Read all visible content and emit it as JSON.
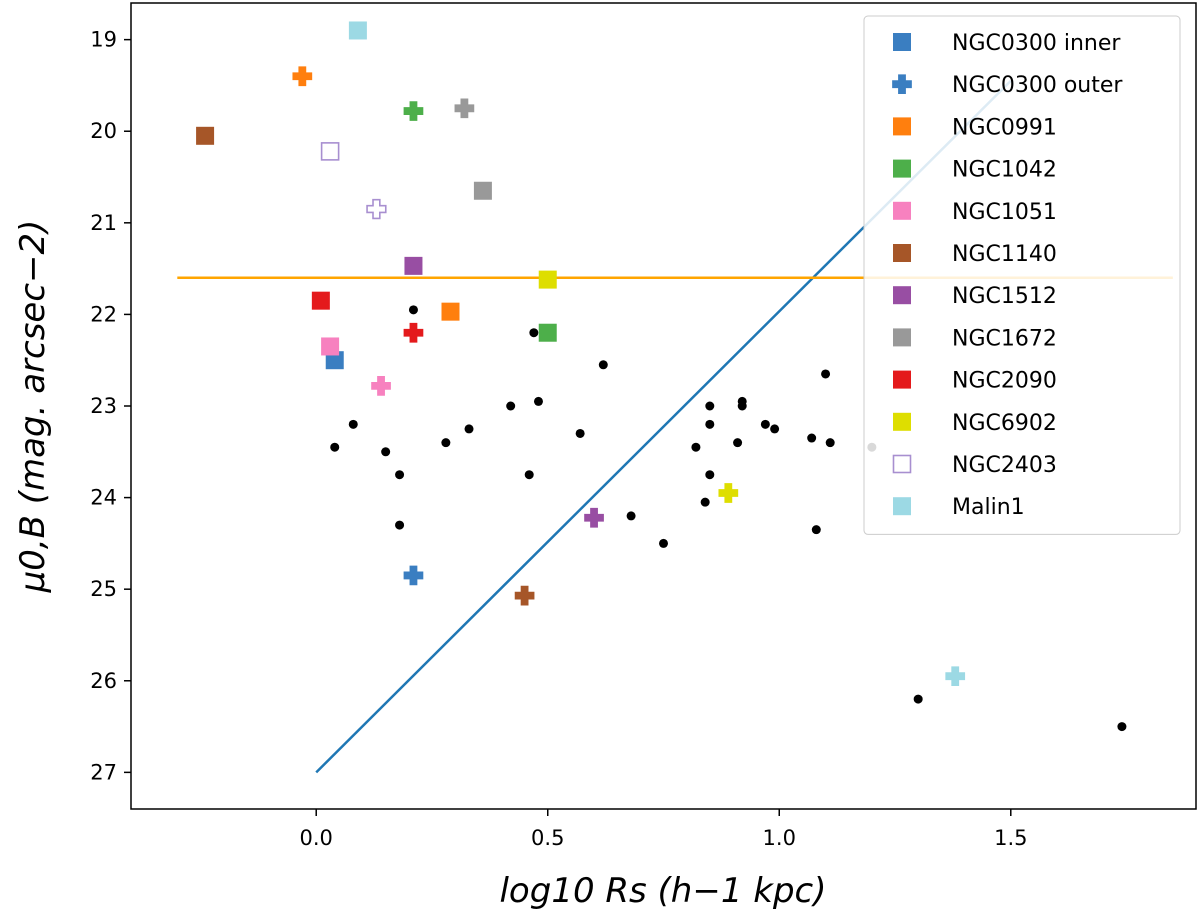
{
  "chart_data": {
    "type": "scatter",
    "xlabel": "log10 Rs (h−1 kpc)",
    "ylabel": "μ0,B (mag. arcsec−2)",
    "xlim": [
      -0.4,
      1.9
    ],
    "ylim": [
      27.4,
      18.6
    ],
    "y_inverted": true,
    "x_ticks": [
      {
        "value": 0.0,
        "label": "0.0"
      },
      {
        "value": 0.5,
        "label": "0.5"
      },
      {
        "value": 1.0,
        "label": "1.0"
      },
      {
        "value": 1.5,
        "label": "1.5"
      }
    ],
    "y_ticks": [
      {
        "value": 19,
        "label": "19"
      },
      {
        "value": 20,
        "label": "20"
      },
      {
        "value": 21,
        "label": "21"
      },
      {
        "value": 22,
        "label": "22"
      },
      {
        "value": 23,
        "label": "23"
      },
      {
        "value": 24,
        "label": "24"
      },
      {
        "value": 25,
        "label": "25"
      },
      {
        "value": 26,
        "label": "26"
      },
      {
        "value": 27,
        "label": "27"
      }
    ],
    "grid": false,
    "legend_position": "top-right",
    "lines": [
      {
        "color": "#1f77b4",
        "x": [
          0.0,
          1.5
        ],
        "y": [
          27.0,
          19.45
        ]
      },
      {
        "color": "#ffa500",
        "x": [
          -0.3,
          1.85
        ],
        "y": [
          21.6,
          21.6
        ]
      }
    ],
    "black_points": {
      "color": "#000000",
      "x": [
        0.04,
        0.08,
        0.15,
        0.18,
        0.18,
        0.21,
        0.28,
        0.33,
        0.42,
        0.46,
        0.47,
        0.48,
        0.57,
        0.62,
        0.68,
        0.75,
        0.82,
        0.84,
        0.85,
        0.85,
        0.85,
        0.91,
        0.92,
        0.92,
        0.97,
        0.99,
        1.07,
        1.08,
        1.1,
        1.11,
        1.2,
        1.3,
        1.74
      ],
      "y": [
        23.45,
        23.2,
        23.5,
        23.75,
        24.3,
        21.95,
        23.4,
        23.25,
        23.0,
        23.75,
        22.2,
        22.95,
        23.3,
        22.55,
        24.2,
        24.5,
        23.45,
        24.05,
        23.2,
        23.75,
        23.0,
        23.4,
        22.95,
        23.0,
        23.2,
        23.25,
        23.35,
        24.35,
        22.65,
        23.4,
        23.45,
        26.2,
        26.5
      ]
    },
    "series": [
      {
        "name": "NGC0300 inner",
        "marker": "square",
        "color": "#3a7ec1",
        "filled": true,
        "x": [
          0.04
        ],
        "y": [
          22.5
        ]
      },
      {
        "name": "NGC0300 outer",
        "marker": "plus",
        "color": "#3a7ec1",
        "filled": true,
        "x": [
          0.21
        ],
        "y": [
          24.85
        ]
      },
      {
        "name": "NGC0991",
        "marker": "square",
        "color": "#ff7f0e",
        "filled": true,
        "x": [
          0.29
        ],
        "y": [
          21.97
        ]
      },
      {
        "name": "NGC0991",
        "marker": "plus",
        "color": "#ff7f0e",
        "filled": true,
        "x": [
          -0.03
        ],
        "y": [
          19.4
        ]
      },
      {
        "name": "NGC1042",
        "marker": "square",
        "color": "#4daf4a",
        "filled": true,
        "x": [
          0.5
        ],
        "y": [
          22.2
        ]
      },
      {
        "name": "NGC1042",
        "marker": "plus",
        "color": "#4daf4a",
        "filled": true,
        "x": [
          0.21
        ],
        "y": [
          19.78
        ]
      },
      {
        "name": "NGC1051",
        "marker": "square",
        "color": "#f781bf",
        "filled": true,
        "x": [
          0.03
        ],
        "y": [
          22.35
        ]
      },
      {
        "name": "NGC1051",
        "marker": "plus",
        "color": "#f781bf",
        "filled": true,
        "x": [
          0.14
        ],
        "y": [
          22.78
        ]
      },
      {
        "name": "NGC1140",
        "marker": "square",
        "color": "#a65628",
        "filled": true,
        "x": [
          -0.24
        ],
        "y": [
          20.05
        ]
      },
      {
        "name": "NGC1140",
        "marker": "plus",
        "color": "#a65628",
        "filled": true,
        "x": [
          0.45
        ],
        "y": [
          25.07
        ]
      },
      {
        "name": "NGC1512",
        "marker": "square",
        "color": "#984ea3",
        "filled": true,
        "x": [
          0.21
        ],
        "y": [
          21.47
        ]
      },
      {
        "name": "NGC1512",
        "marker": "plus",
        "color": "#984ea3",
        "filled": true,
        "x": [
          0.6
        ],
        "y": [
          24.22
        ]
      },
      {
        "name": "NGC1672",
        "marker": "square",
        "color": "#999999",
        "filled": true,
        "x": [
          0.36
        ],
        "y": [
          20.65
        ]
      },
      {
        "name": "NGC1672",
        "marker": "plus",
        "color": "#999999",
        "filled": true,
        "x": [
          0.32
        ],
        "y": [
          19.75
        ]
      },
      {
        "name": "NGC2090",
        "marker": "square",
        "color": "#e41a1c",
        "filled": true,
        "x": [
          0.01
        ],
        "y": [
          21.85
        ]
      },
      {
        "name": "NGC2090",
        "marker": "plus",
        "color": "#e41a1c",
        "filled": true,
        "x": [
          0.21
        ],
        "y": [
          22.2
        ]
      },
      {
        "name": "NGC6902",
        "marker": "square",
        "color": "#dede00",
        "filled": true,
        "x": [
          0.5
        ],
        "y": [
          21.62
        ]
      },
      {
        "name": "NGC6902",
        "marker": "plus",
        "color": "#dede00",
        "filled": true,
        "x": [
          0.89
        ],
        "y": [
          23.95
        ]
      },
      {
        "name": "NGC2403",
        "marker": "square",
        "color": "#a88fd0",
        "filled": false,
        "x": [
          0.03
        ],
        "y": [
          20.22
        ]
      },
      {
        "name": "NGC2403",
        "marker": "plus",
        "color": "#a88fd0",
        "filled": false,
        "x": [
          0.13
        ],
        "y": [
          20.85
        ]
      },
      {
        "name": "Malin1",
        "marker": "square",
        "color": "#9cd9e4",
        "filled": true,
        "x": [
          0.09
        ],
        "y": [
          18.9
        ]
      },
      {
        "name": "Malin1",
        "marker": "plus",
        "color": "#9cd9e4",
        "filled": true,
        "x": [
          1.38
        ],
        "y": [
          25.95
        ]
      }
    ],
    "legend": [
      {
        "label": "NGC0300 inner",
        "marker": "square",
        "color": "#3a7ec1",
        "filled": true
      },
      {
        "label": "NGC0300 outer",
        "marker": "plus",
        "color": "#3a7ec1",
        "filled": true
      },
      {
        "label": "NGC0991",
        "marker": "square",
        "color": "#ff7f0e",
        "filled": true
      },
      {
        "label": "NGC1042",
        "marker": "square",
        "color": "#4daf4a",
        "filled": true
      },
      {
        "label": "NGC1051",
        "marker": "square",
        "color": "#f781bf",
        "filled": true
      },
      {
        "label": "NGC1140",
        "marker": "square",
        "color": "#a65628",
        "filled": true
      },
      {
        "label": "NGC1512",
        "marker": "square",
        "color": "#984ea3",
        "filled": true
      },
      {
        "label": "NGC1672",
        "marker": "square",
        "color": "#999999",
        "filled": true
      },
      {
        "label": "NGC2090",
        "marker": "square",
        "color": "#e41a1c",
        "filled": true
      },
      {
        "label": "NGC6902",
        "marker": "square",
        "color": "#dede00",
        "filled": true
      },
      {
        "label": "NGC2403",
        "marker": "square",
        "color": "#a88fd0",
        "filled": false
      },
      {
        "label": "Malin1",
        "marker": "square",
        "color": "#9cd9e4",
        "filled": true
      }
    ]
  }
}
